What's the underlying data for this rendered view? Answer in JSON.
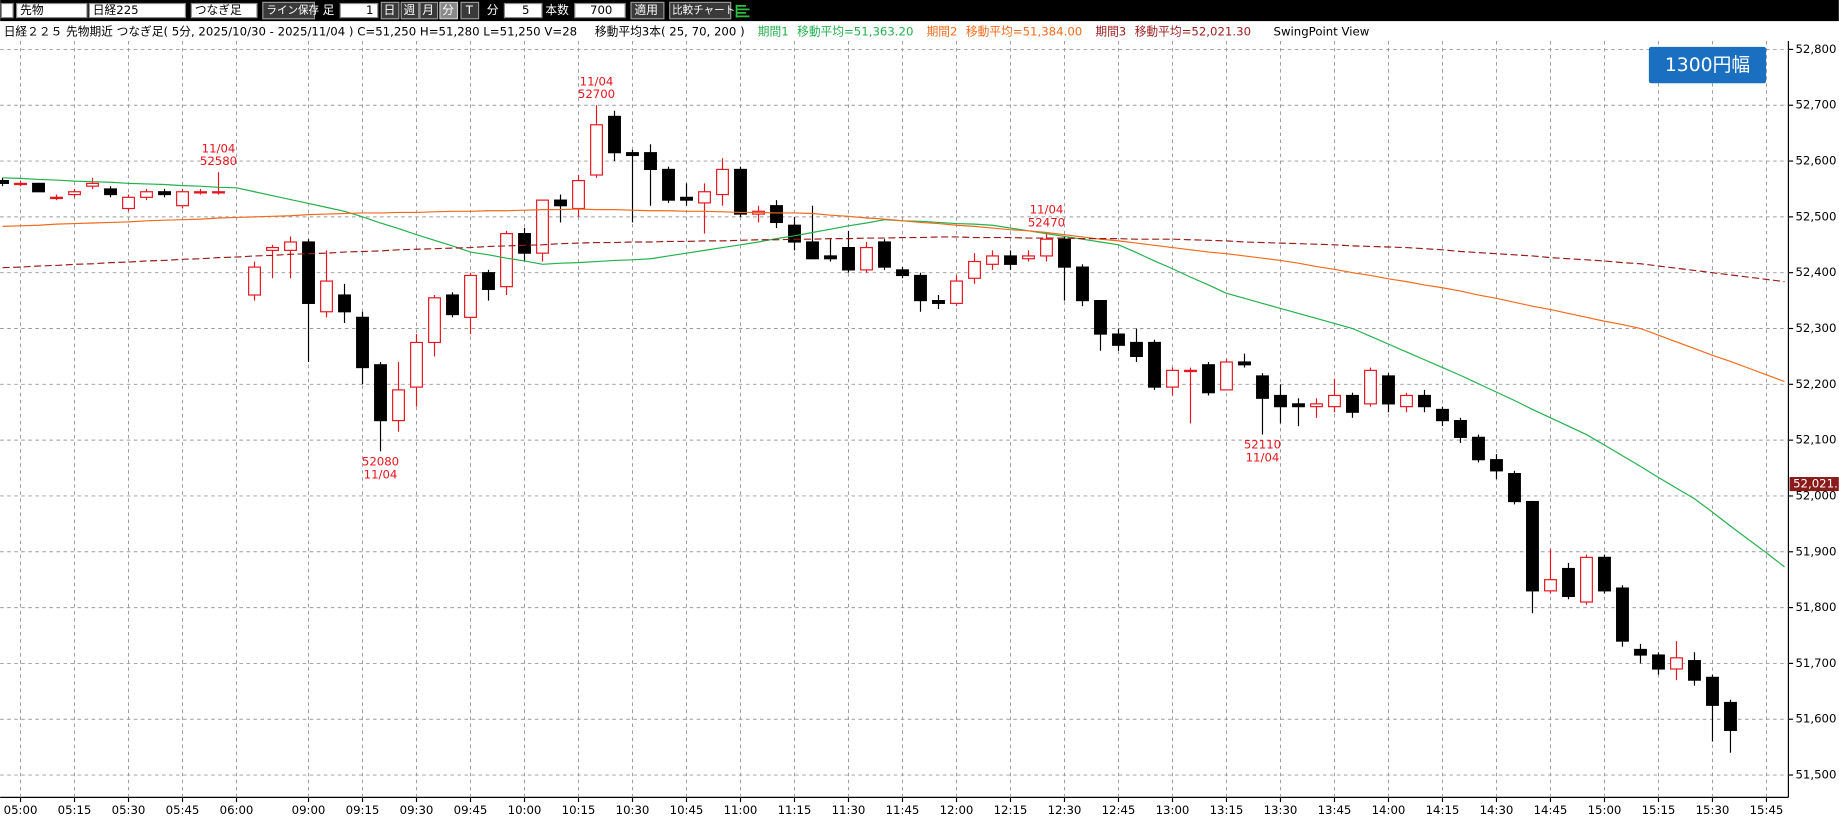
{
  "toolbar": [
    "先物",
    "日経225",
    "つなぎ足",
    "ライン保存",
    "足",
    "1",
    "日",
    "週",
    "月",
    "分",
    "T",
    "分",
    "5",
    "本数",
    "700",
    "適用",
    "比較チャート"
  ],
  "info": {
    "text": "日経２２５ 先物期近 つなぎ足( 5分, 2025/10/30 - 2025/11/04 )  C=51,250 H=51,280 L=51,250 V=28",
    "ma": "移動平均3本( 25, 70, 200 )",
    "swing": "SwingPoint View"
  },
  "badge": "1300円幅",
  "chart_data": {
    "type": "candlestick",
    "up_color": "#e8141e",
    "down_color": "#000000",
    "grid": true,
    "ylim": [
      51460,
      52815
    ],
    "yticks": [
      {
        "value": 51500,
        "label": "51,500"
      },
      {
        "value": 51600,
        "label": "51,600"
      },
      {
        "value": 51700,
        "label": "51,700"
      },
      {
        "value": 51800,
        "label": "51,800"
      },
      {
        "value": 51900,
        "label": "51,900"
      },
      {
        "value": 52000,
        "label": "52,000"
      },
      {
        "value": 52100,
        "label": "52,100"
      },
      {
        "value": 52200,
        "label": "52,200"
      },
      {
        "value": 52300,
        "label": "52,300"
      },
      {
        "value": 52400,
        "label": "52,400"
      },
      {
        "value": 52500,
        "label": "52,500"
      },
      {
        "value": 52600,
        "label": "52,600"
      },
      {
        "value": 52700,
        "label": "52,700"
      },
      {
        "value": 52800,
        "label": "52,800"
      }
    ],
    "categories": [
      null,
      "05:00",
      null,
      null,
      "05:15",
      null,
      null,
      "05:30",
      null,
      null,
      "05:45",
      null,
      null,
      "06:00",
      null,
      null,
      null,
      "09:00",
      null,
      null,
      "09:15",
      null,
      null,
      "09:30",
      null,
      null,
      "09:45",
      null,
      null,
      "10:00",
      null,
      null,
      "10:15",
      null,
      null,
      "10:30",
      null,
      null,
      "10:45",
      null,
      null,
      "11:00",
      null,
      null,
      "11:15",
      null,
      null,
      "11:30",
      null,
      null,
      "11:45",
      null,
      null,
      "12:00",
      null,
      null,
      "12:15",
      null,
      null,
      "12:30",
      null,
      null,
      "12:45",
      null,
      null,
      "13:00",
      null,
      null,
      "13:15",
      null,
      null,
      "13:30",
      null,
      null,
      "13:45",
      null,
      null,
      "14:00",
      null,
      null,
      "14:15",
      null,
      null,
      "14:30",
      null,
      null,
      "14:45",
      null,
      null,
      "15:00",
      null,
      null,
      "15:15",
      null,
      null,
      "15:30",
      null,
      null,
      "15:45",
      null
    ],
    "open": [
      52565,
      52560,
      52560,
      52535,
      52540,
      52555,
      52550,
      52515,
      52535,
      52545,
      52520,
      52545,
      52545,
      null,
      52360,
      52440,
      52440,
      52455,
      52330,
      52360,
      52320,
      52235,
      52135,
      52195,
      52275,
      52360,
      52320,
      52400,
      52375,
      52470,
      52435,
      52530,
      52515,
      52575,
      52680,
      52615,
      52615,
      52585,
      52535,
      52525,
      52540,
      52585,
      52505,
      52520,
      52485,
      52455,
      52430,
      52445,
      52405,
      52455,
      52405,
      52395,
      52350,
      52345,
      52390,
      52415,
      52430,
      52425,
      52430,
      52460,
      52410,
      52350,
      52290,
      52275,
      52275,
      52195,
      52225,
      52235,
      52190,
      52240,
      52215,
      52180,
      52165,
      52160,
      52160,
      52180,
      52165,
      52215,
      52160,
      52180,
      52155,
      52135,
      52105,
      52065,
      52040,
      51990,
      51830,
      51870,
      51810,
      51890,
      51835,
      51725,
      51715,
      51690,
      51705,
      51675,
      51630,
      null,
      null,
      null
    ],
    "high": [
      52570,
      52565,
      52560,
      52540,
      52550,
      52570,
      52555,
      52540,
      52550,
      52550,
      52550,
      52550,
      52580,
      null,
      52420,
      52450,
      52465,
      52460,
      52440,
      52380,
      52330,
      52240,
      52240,
      52290,
      52360,
      52365,
      52400,
      52405,
      52475,
      52480,
      52530,
      52540,
      52575,
      52700,
      52690,
      52620,
      52630,
      52590,
      52560,
      52560,
      52605,
      52590,
      52520,
      52530,
      52500,
      52520,
      52460,
      52475,
      52455,
      52460,
      52410,
      52400,
      52360,
      52395,
      52435,
      52440,
      52440,
      52440,
      52470,
      52465,
      52415,
      52350,
      52300,
      52300,
      52280,
      52230,
      52230,
      52240,
      52245,
      52255,
      52220,
      52200,
      52175,
      52175,
      52210,
      52185,
      52230,
      52220,
      52185,
      52190,
      52160,
      52140,
      52110,
      52075,
      52045,
      51990,
      51905,
      51880,
      51895,
      51895,
      51840,
      51735,
      51720,
      51740,
      51720,
      51680,
      51635,
      null,
      null,
      null
    ],
    "low": [
      52555,
      52555,
      52545,
      52530,
      52535,
      52550,
      52535,
      52510,
      52530,
      52535,
      52515,
      52540,
      52540,
      null,
      52350,
      52390,
      52390,
      52240,
      52320,
      52310,
      52200,
      52080,
      52115,
      52160,
      52250,
      52320,
      52290,
      52350,
      52360,
      52420,
      52420,
      52490,
      52500,
      52570,
      52600,
      52490,
      52520,
      52525,
      52520,
      52470,
      52520,
      52500,
      52490,
      52480,
      52440,
      52425,
      52420,
      52400,
      52400,
      52405,
      52390,
      52330,
      52335,
      52340,
      52380,
      52405,
      52405,
      52420,
      52420,
      52350,
      52340,
      52260,
      52260,
      52240,
      52190,
      52180,
      52130,
      52180,
      52190,
      52230,
      52110,
      52130,
      52125,
      52140,
      52150,
      52140,
      52160,
      52150,
      52150,
      52150,
      52125,
      52095,
      52060,
      52030,
      51985,
      51790,
      51825,
      51815,
      51805,
      51825,
      51730,
      51700,
      51680,
      51670,
      51660,
      51560,
      51540,
      null,
      null,
      null
    ],
    "close": [
      52560,
      52560,
      52545,
      52535,
      52545,
      52560,
      52540,
      52535,
      52545,
      52540,
      52545,
      52545,
      52545,
      null,
      52410,
      52445,
      52455,
      52345,
      52385,
      52330,
      52230,
      52135,
      52190,
      52275,
      52355,
      52325,
      52395,
      52370,
      52470,
      52435,
      52530,
      52520,
      52565,
      52665,
      52615,
      52610,
      52585,
      52530,
      52530,
      52545,
      52585,
      52505,
      52510,
      52490,
      52455,
      52425,
      52425,
      52405,
      52445,
      52410,
      52395,
      52350,
      52345,
      52385,
      52420,
      52430,
      52415,
      52430,
      52460,
      52410,
      52350,
      52290,
      52270,
      52250,
      52195,
      52225,
      52225,
      52185,
      52240,
      52235,
      52175,
      52160,
      52160,
      52165,
      52180,
      52150,
      52225,
      52165,
      52180,
      52160,
      52135,
      52105,
      52065,
      52045,
      51990,
      51830,
      51850,
      51820,
      51890,
      51830,
      51740,
      51715,
      51690,
      51710,
      51670,
      51625,
      51580,
      null,
      null,
      null
    ],
    "series": [
      {
        "name": "期間1",
        "label": "移動平均=51,363.20",
        "color": "#22b14c",
        "style": "solid",
        "values": [
          52570,
          52569,
          52567,
          52566,
          52564,
          52563,
          52562,
          52560,
          52559,
          52558,
          52556,
          52555,
          52553,
          52552,
          52545,
          52538,
          52531,
          52524,
          52517,
          52510,
          52500,
          52489,
          52479,
          52468,
          52458,
          52448,
          52437,
          52432,
          52426,
          52421,
          52415,
          52417,
          52418,
          52420,
          52422,
          52423,
          52425,
          52430,
          52435,
          52440,
          52445,
          52450,
          52455,
          52461,
          52466,
          52472,
          52478,
          52484,
          52489,
          52495,
          52493,
          52492,
          52490,
          52488,
          52487,
          52485,
          52480,
          52475,
          52470,
          52465,
          52460,
          52455,
          52450,
          52436,
          52421,
          52407,
          52392,
          52378,
          52363,
          52354,
          52345,
          52336,
          52327,
          52318,
          52309,
          52300,
          52286,
          52272,
          52258,
          52244,
          52230,
          52216,
          52201,
          52186,
          52171,
          52155,
          52140,
          52125,
          52110,
          52091,
          52072,
          52053,
          52033,
          52014,
          51995,
          51971,
          51946,
          51922,
          51898,
          51873
        ]
      },
      {
        "name": "期間2",
        "label": "移動平均=51,384.00",
        "color": "#f26b1d",
        "style": "solid",
        "values": [
          52483,
          52484,
          52485,
          52487,
          52488,
          52489,
          52490,
          52491,
          52493,
          52494,
          52495,
          52496,
          52498,
          52499,
          52500,
          52501,
          52502,
          52504,
          52505,
          52506,
          52507,
          52507,
          52508,
          52508,
          52509,
          52510,
          52510,
          52511,
          52511,
          52512,
          52513,
          52513,
          52514,
          52513,
          52513,
          52512,
          52511,
          52511,
          52510,
          52510,
          52509,
          52508,
          52508,
          52507,
          52507,
          52506,
          52503,
          52501,
          52498,
          52496,
          52493,
          52490,
          52488,
          52485,
          52483,
          52480,
          52477,
          52475,
          52472,
          52468,
          52464,
          52460,
          52457,
          52453,
          52449,
          52445,
          52441,
          52437,
          52434,
          52430,
          52426,
          52422,
          52417,
          52411,
          52406,
          52400,
          52395,
          52389,
          52384,
          52378,
          52373,
          52367,
          52360,
          52354,
          52347,
          52340,
          52334,
          52327,
          52320,
          52313,
          52307,
          52300,
          52288,
          52276,
          52264,
          52252,
          52241,
          52229,
          52217,
          52205
        ]
      },
      {
        "name": "期間3",
        "label": "移動平均=52,021.30",
        "color": "#9b1c1c",
        "style": "dashed",
        "values": [
          52409,
          52410,
          52412,
          52413,
          52415,
          52416,
          52418,
          52419,
          52421,
          52422,
          52424,
          52425,
          52427,
          52428,
          52430,
          52431,
          52433,
          52434,
          52435,
          52437,
          52438,
          52439,
          52441,
          52442,
          52443,
          52444,
          52445,
          52447,
          52448,
          52449,
          52450,
          52452,
          52453,
          52454,
          52454,
          52455,
          52455,
          52456,
          52456,
          52457,
          52457,
          52458,
          52459,
          52459,
          52460,
          52460,
          52461,
          52461,
          52462,
          52462,
          52463,
          52463,
          52464,
          52464,
          52463,
          52463,
          52463,
          52462,
          52462,
          52462,
          52461,
          52461,
          52461,
          52460,
          52460,
          52460,
          52459,
          52458,
          52457,
          52455,
          52454,
          52453,
          52452,
          52451,
          52450,
          52448,
          52447,
          52446,
          52445,
          52443,
          52441,
          52438,
          52436,
          52434,
          52432,
          52430,
          52427,
          52425,
          52423,
          52421,
          52418,
          52416,
          52412,
          52408,
          52404,
          52400,
          52396,
          52392,
          52388,
          52384
        ]
      }
    ],
    "annotations": [
      {
        "date": "11/04",
        "price": 52580,
        "kind": "high"
      },
      {
        "date": "11/04",
        "price": 52700,
        "kind": "high"
      },
      {
        "date": "11/04",
        "price": 52080,
        "kind": "low"
      },
      {
        "date": "11/04",
        "price": 52470,
        "kind": "high"
      },
      {
        "date": "11/04",
        "price": 52110,
        "kind": "low"
      }
    ],
    "last_price": {
      "value": 52021.3,
      "label": "52,021."
    }
  }
}
